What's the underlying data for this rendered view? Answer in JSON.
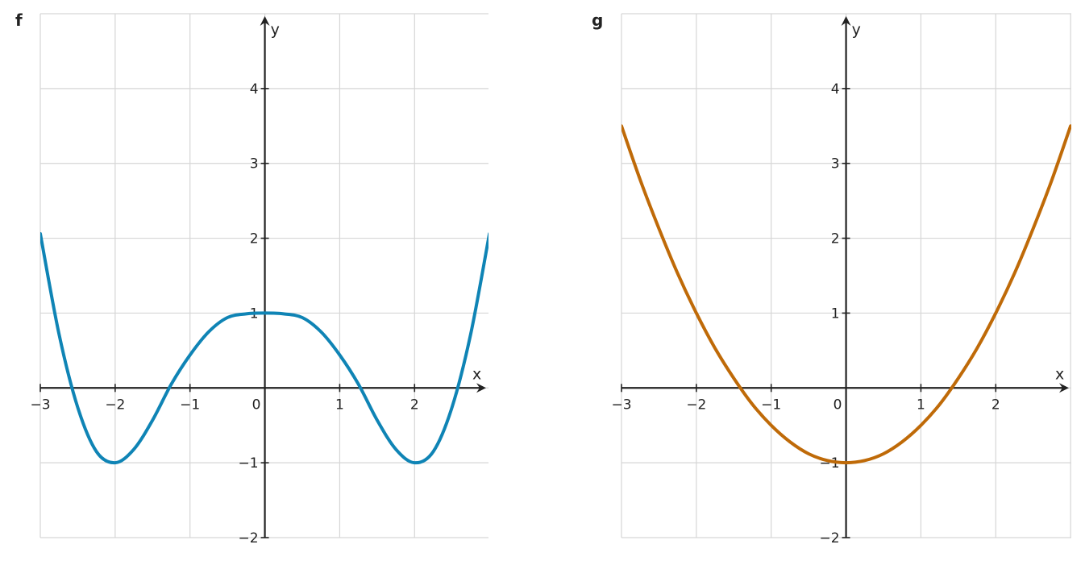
{
  "chart_data": [
    {
      "type": "line",
      "panel_label": "f",
      "xlabel": "x",
      "ylabel": "y",
      "xlim": [
        -3,
        3
      ],
      "ylim": [
        -2,
        5
      ],
      "x_ticks": [
        -3,
        -2,
        -1,
        0,
        1,
        2
      ],
      "y_ticks": [
        -2,
        -1,
        1,
        2,
        3,
        4
      ],
      "x_tick_labels": [
        "−3",
        "−2",
        "−1",
        "0",
        "1",
        "2"
      ],
      "y_tick_labels": [
        "−2",
        "−1",
        "1",
        "2",
        "3",
        "4"
      ],
      "grid": true,
      "color": "#0f84b5",
      "series": [
        {
          "x": [
            -3,
            -2.75,
            -2.5,
            -2.25,
            -2,
            -1.75,
            -1.5,
            -1.25,
            -1,
            -0.75,
            -0.5,
            -0.25,
            0,
            0.25,
            0.5,
            0.75,
            1,
            1.25,
            1.5,
            1.75,
            2,
            2.25,
            2.5,
            2.75,
            3
          ],
          "y": [
            2.06,
            0.72,
            -0.26,
            -0.85,
            -1.0,
            -0.82,
            -0.43,
            0.05,
            0.44,
            0.75,
            0.94,
            0.99,
            1.0,
            0.99,
            0.94,
            0.75,
            0.44,
            0.05,
            -0.43,
            -0.82,
            -1.0,
            -0.85,
            -0.26,
            0.72,
            2.06
          ]
        }
      ]
    },
    {
      "type": "line",
      "panel_label": "g",
      "xlabel": "x",
      "ylabel": "y",
      "xlim": [
        -3,
        3
      ],
      "ylim": [
        -2,
        5
      ],
      "x_ticks": [
        -3,
        -2,
        -1,
        0,
        1,
        2
      ],
      "y_ticks": [
        -2,
        -1,
        1,
        2,
        3,
        4
      ],
      "x_tick_labels": [
        "−3",
        "−2",
        "−1",
        "0",
        "1",
        "2"
      ],
      "y_tick_labels": [
        "−2",
        "−1",
        "1",
        "2",
        "3",
        "4"
      ],
      "grid": true,
      "color": "#bf6a08",
      "series": [
        {
          "x": [
            -3,
            -2.75,
            -2.5,
            -2.25,
            -2,
            -1.75,
            -1.5,
            -1.25,
            -1,
            -0.75,
            -0.5,
            -0.25,
            0,
            0.25,
            0.5,
            0.75,
            1,
            1.25,
            1.5,
            1.75,
            2,
            2.25,
            2.5,
            2.75,
            3
          ],
          "y": [
            3.5,
            2.78,
            2.13,
            1.53,
            1.0,
            0.53,
            0.13,
            -0.22,
            -0.5,
            -0.72,
            -0.88,
            -0.97,
            -1.0,
            -0.97,
            -0.88,
            -0.72,
            -0.5,
            -0.22,
            0.13,
            0.53,
            1.0,
            1.53,
            2.13,
            2.78,
            3.5
          ]
        }
      ]
    }
  ]
}
